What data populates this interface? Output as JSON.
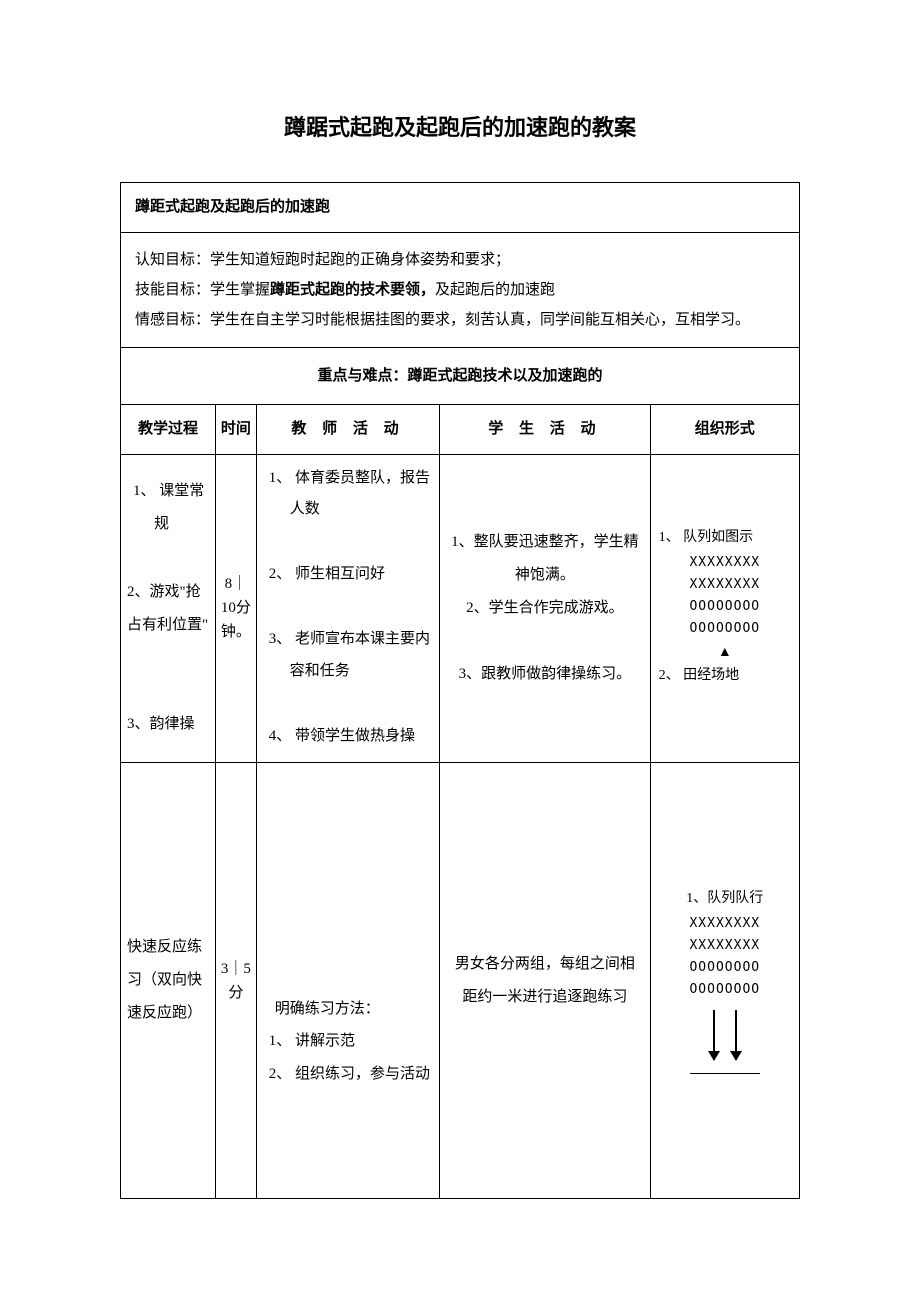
{
  "title": "蹲踞式起跑及起跑后的加速跑的教案",
  "subtitle": "蹲距式起跑及起跑后的加速跑",
  "goals": {
    "cognitive_label": "认知目标：",
    "cognitive_text": "学生知道短跑时起跑的正确身体姿势和要求；",
    "skill_label": "技能目标：",
    "skill_text_prefix": "学生掌握",
    "skill_text_bold": "蹲距式起跑的技术要领，",
    "skill_text_suffix": "及起跑后的加速跑",
    "emotion_label": "情感目标：",
    "emotion_text": "学生在自主学习时能根据挂图的要求，刻苦认真，同学间能互相关心，互相学习。"
  },
  "keypoint_label": "重点与难点：",
  "keypoint_text": "蹲距式起跑技术以及加速跑的",
  "headers": {
    "process": "教学过程",
    "time": "时间",
    "teacher": "教 师 活 动",
    "student": "学 生 活 动",
    "org": "组织形式"
  },
  "row1": {
    "process_1": "1、 课堂常规",
    "process_2": "2、游戏\"抢占有利位置\"",
    "process_3": "3、韵律操",
    "time": "8｜10分钟。",
    "teacher_1": "1、 体育委员整队，报告人数",
    "teacher_2": "2、 师生相互问好",
    "teacher_3": "3、 老师宣布本课主要内容和任务",
    "teacher_4": "4、 带领学生做热身操",
    "student_1": "1、整队要迅速整齐，学生精神饱满。",
    "student_2": "2、学生合作完成游戏。",
    "student_3": "3、跟教师做韵律操练习。",
    "org_label1": "1、 队列如图示",
    "org_x": "XXXXXXXX",
    "org_o": "OOOOOOOO",
    "org_tri": "▲",
    "org_label2": "2、 田经场地"
  },
  "row2": {
    "process": "快速反应练习（双向快速反应跑）",
    "time": "3｜5分",
    "teacher_title": "明确练习方法：",
    "teacher_1": "1、 讲解示范",
    "teacher_2": "2、 组织练习，参与活动",
    "student": "男女各分两组，每组之间相距约一米进行追逐跑练习",
    "org_label": "1、队列队行",
    "org_x": "XXXXXXXX",
    "org_o": "OOOOOOOO"
  },
  "colors": {
    "text": "#000000",
    "background": "#ffffff",
    "border": "#000000"
  }
}
